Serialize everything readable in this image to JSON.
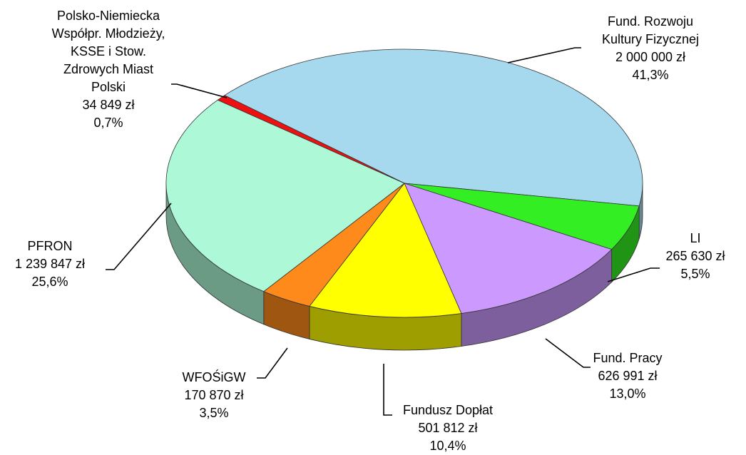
{
  "chart_data": {
    "type": "pie3d",
    "categories": [
      "Fund. Rozwoju\nKultury Fizycznej",
      "LI",
      "Fund. Pracy",
      "Fundusz Dopłat",
      "WFOŚiGW",
      "PFRON",
      "Polsko-Niemiecka\nWspółpr. Młodzieży,\nKSSE i Stow.\nZdrowych Miast\nPolski"
    ],
    "values": [
      2000000,
      265630,
      626991,
      501812,
      170870,
      1239847,
      34849
    ],
    "value_labels": [
      "2 000 000 zł",
      "265 630 zł",
      "626 991 zł",
      "501 812 zł",
      "170 870 zł",
      "1 239 847 zł",
      "34 849 zł"
    ],
    "percentages": [
      41.3,
      5.5,
      13.0,
      10.4,
      3.5,
      25.6,
      0.7
    ],
    "percentage_labels": [
      "41,3%",
      "5,5%",
      "13,0%",
      "10,4%",
      "3,5%",
      "25,6%",
      "0,7%"
    ],
    "colors": [
      "#a6d9ee",
      "#33ee22",
      "#cc99ff",
      "#ffff00",
      "#ff8a1c",
      "#adf8d6",
      "#ee1111"
    ]
  }
}
